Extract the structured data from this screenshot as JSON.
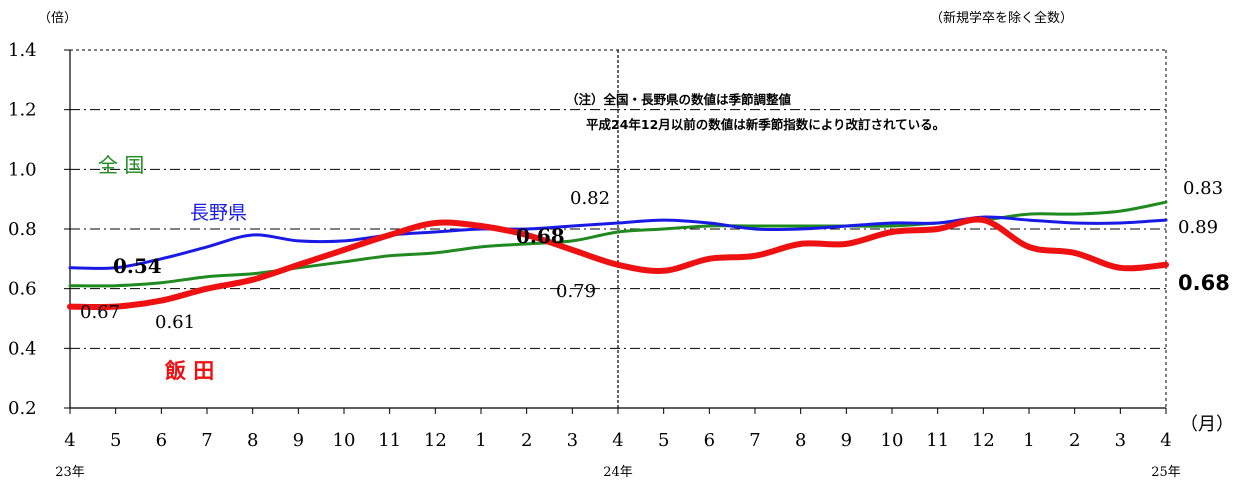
{
  "chart_data": {
    "type": "line",
    "y_unit": "（倍）",
    "x_unit": "（月）",
    "corner_note": "（新規学卒を除く全数）",
    "note_lines": [
      "（注）全国・長野県の数値は季節調整値",
      "平成24年12月以前の数値は新季節指数により改訂されている。"
    ],
    "ylim": [
      0.2,
      1.4
    ],
    "yticks": [
      "1.4",
      "1.2",
      "1.0",
      "0.8",
      "0.6",
      "0.4",
      "0.2"
    ],
    "categories": [
      "4",
      "5",
      "6",
      "7",
      "8",
      "9",
      "10",
      "11",
      "12",
      "1",
      "2",
      "3",
      "4",
      "5",
      "6",
      "7",
      "8",
      "9",
      "10",
      "11",
      "12",
      "1",
      "2",
      "3",
      "4"
    ],
    "years": [
      {
        "label": "23年",
        "index": 0
      },
      {
        "label": "24年",
        "index": 12
      },
      {
        "label": "25年",
        "index": 24
      }
    ],
    "grid": true,
    "series": [
      {
        "name": "全 国",
        "color": "#1f8a1f",
        "values": [
          0.61,
          0.61,
          0.62,
          0.64,
          0.65,
          0.67,
          0.69,
          0.71,
          0.72,
          0.74,
          0.75,
          0.76,
          0.79,
          0.8,
          0.81,
          0.81,
          0.81,
          0.81,
          0.81,
          0.82,
          0.83,
          0.85,
          0.85,
          0.86,
          0.89
        ]
      },
      {
        "name": "長野県",
        "color": "#1a1ae6",
        "values": [
          0.67,
          0.67,
          0.7,
          0.74,
          0.78,
          0.76,
          0.76,
          0.78,
          0.79,
          0.8,
          0.8,
          0.81,
          0.82,
          0.83,
          0.82,
          0.8,
          0.8,
          0.81,
          0.82,
          0.82,
          0.84,
          0.83,
          0.82,
          0.82,
          0.83
        ]
      },
      {
        "name": "飯 田",
        "color": "#ee1111",
        "values": [
          0.54,
          0.54,
          0.56,
          0.6,
          0.63,
          0.68,
          0.73,
          0.78,
          0.82,
          0.81,
          0.78,
          0.73,
          0.68,
          0.66,
          0.7,
          0.71,
          0.75,
          0.75,
          0.79,
          0.8,
          0.83,
          0.74,
          0.72,
          0.67,
          0.68
        ]
      }
    ],
    "data_labels": [
      {
        "text": "0.54",
        "bold": true
      },
      {
        "text": "0.67",
        "bold": false
      },
      {
        "text": "0.61",
        "bold": false
      },
      {
        "text": "0.82",
        "bold": false
      },
      {
        "text": "0.68",
        "bold": true
      },
      {
        "text": "0.79",
        "bold": false
      },
      {
        "text": "0.83",
        "bold": false
      },
      {
        "text": "0.89",
        "bold": false
      },
      {
        "text": "0.68",
        "bold": true
      }
    ]
  }
}
